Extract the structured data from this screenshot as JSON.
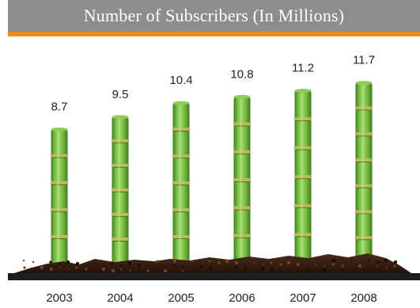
{
  "title": "Number of Subscribers (In Millions)",
  "colors": {
    "title_bar": "#8d8d8d",
    "title_accent": "#f08a1c",
    "stalk": "#6fb13a",
    "soil": "#3a2418",
    "baseline": "#1d1d1d"
  },
  "chart_data": {
    "type": "bar",
    "title": "Number of Subscribers (In Millions)",
    "categories": [
      "2003",
      "2004",
      "2005",
      "2006",
      "2007",
      "2008"
    ],
    "values": [
      8.7,
      9.5,
      10.4,
      10.8,
      11.2,
      11.7
    ],
    "value_labels": [
      "8.7",
      "9.5",
      "10.4",
      "10.8",
      "11.2",
      "11.7"
    ],
    "xlabel": "",
    "ylabel": "",
    "ylim": [
      0,
      12
    ],
    "grid": false,
    "legend": "none",
    "bar_style": "bamboo-stalks"
  }
}
